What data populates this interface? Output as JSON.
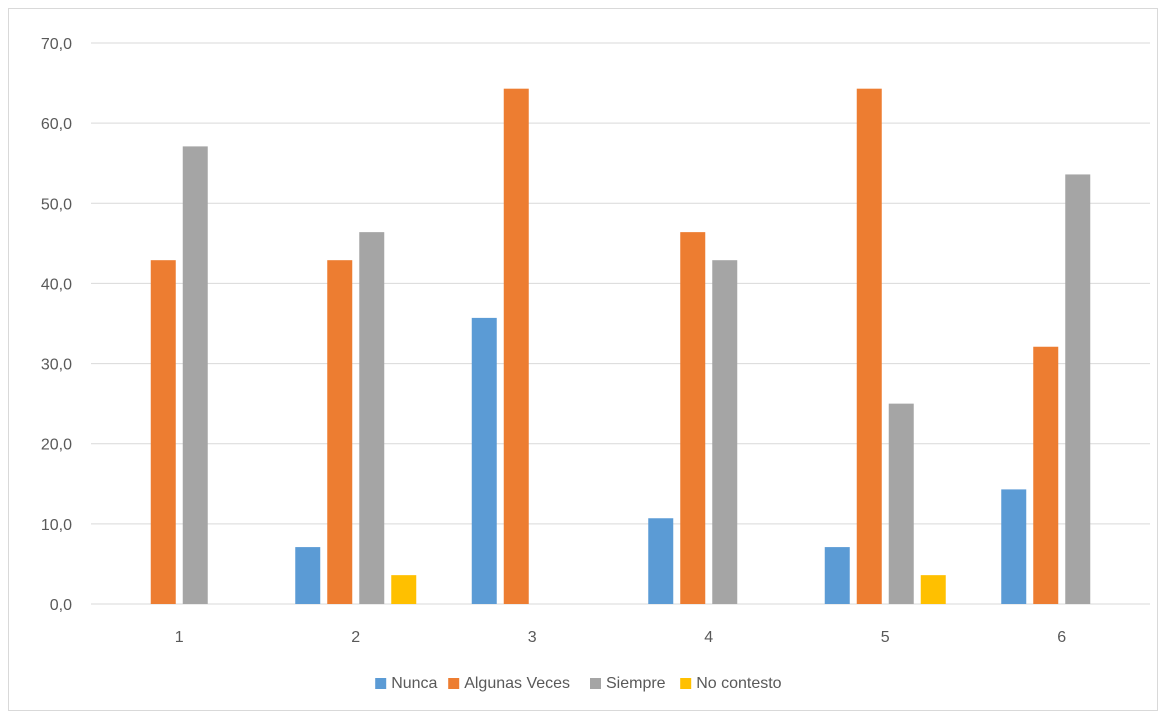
{
  "chart_data": {
    "type": "bar",
    "title": "",
    "xlabel": "",
    "ylabel": "",
    "categories": [
      "1",
      "2",
      "3",
      "4",
      "5",
      "6"
    ],
    "ylim": [
      0,
      70
    ],
    "yticks": [
      0,
      10,
      20,
      30,
      40,
      50,
      60,
      70
    ],
    "ytick_labels": [
      "0,0",
      "10,0",
      "20,0",
      "30,0",
      "40,0",
      "50,0",
      "60,0",
      "70,0"
    ],
    "grid": true,
    "legend_position": "bottom",
    "series": [
      {
        "name": "Nunca",
        "color": "#5b9bd5",
        "values": [
          0,
          7.1,
          35.7,
          10.7,
          7.1,
          14.3
        ]
      },
      {
        "name": "Algunas Veces",
        "color": "#ed7d31",
        "values": [
          42.9,
          42.9,
          64.3,
          46.4,
          64.3,
          32.1
        ]
      },
      {
        "name": "Siempre",
        "color": "#a5a5a5",
        "values": [
          57.1,
          46.4,
          0,
          42.9,
          25.0,
          53.6
        ]
      },
      {
        "name": "No contesto",
        "color": "#ffc000",
        "values": [
          0,
          3.6,
          0,
          0,
          3.6,
          0
        ]
      }
    ]
  }
}
